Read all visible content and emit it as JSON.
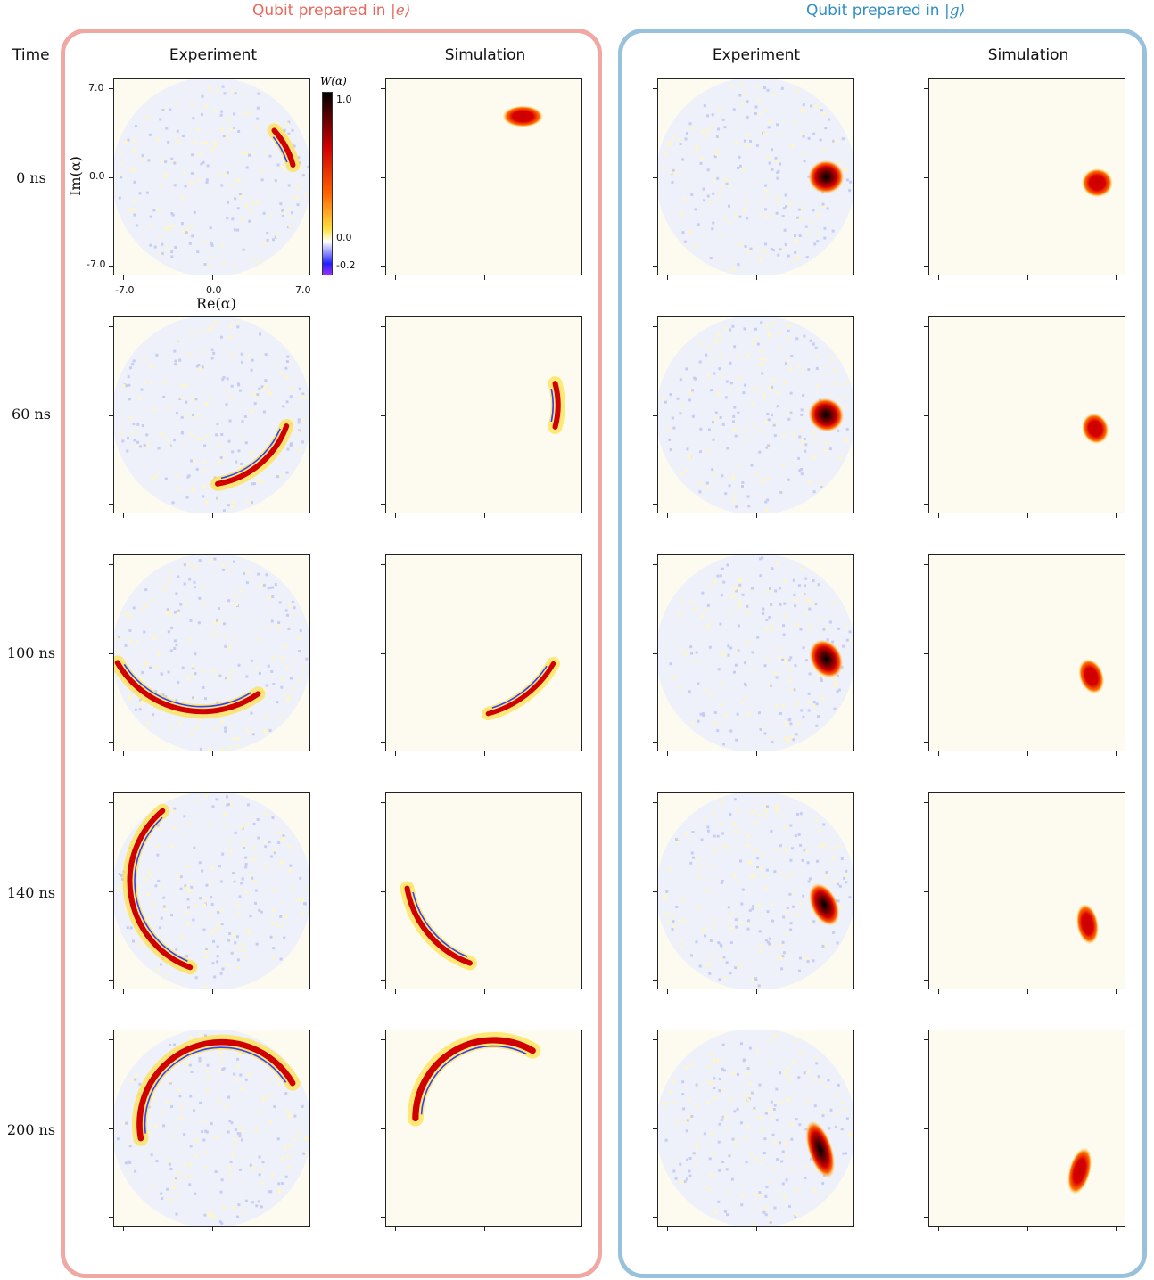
{
  "groups": {
    "excited": {
      "title_prefix": "Qubit prepared in",
      "ket": "|e⟩",
      "frame_color": "#f0a8a2",
      "title_color": "#e8675c"
    },
    "ground": {
      "title_prefix": "Qubit prepared in",
      "ket": "|g⟩",
      "frame_color": "#98c2dc",
      "title_color": "#2f8ec2"
    }
  },
  "column_headers": {
    "time": "Time",
    "experiment": "Experiment",
    "simulation": "Simulation"
  },
  "rows": [
    {
      "time": "0 ns"
    },
    {
      "time": "60 ns"
    },
    {
      "time": "100 ns"
    },
    {
      "time": "140 ns"
    },
    {
      "time": "200 ns"
    }
  ],
  "axes": {
    "ylabel": "Im(α)",
    "xlabel": "Re(α)",
    "y_ticks": [
      "7.0",
      "0.0",
      "-7.0"
    ],
    "x_ticks": [
      "-7.0",
      "0.0",
      "7.0"
    ]
  },
  "colorbar": {
    "title": "W(α)",
    "ticks": [
      "1.0",
      "0.0",
      "-0.2"
    ],
    "range": [
      -0.2,
      1.0
    ],
    "colors": [
      "#9b30ff",
      "#2020ff",
      "#ffffff",
      "#ffe040",
      "#ff6000",
      "#d00000",
      "#000000"
    ]
  }
}
